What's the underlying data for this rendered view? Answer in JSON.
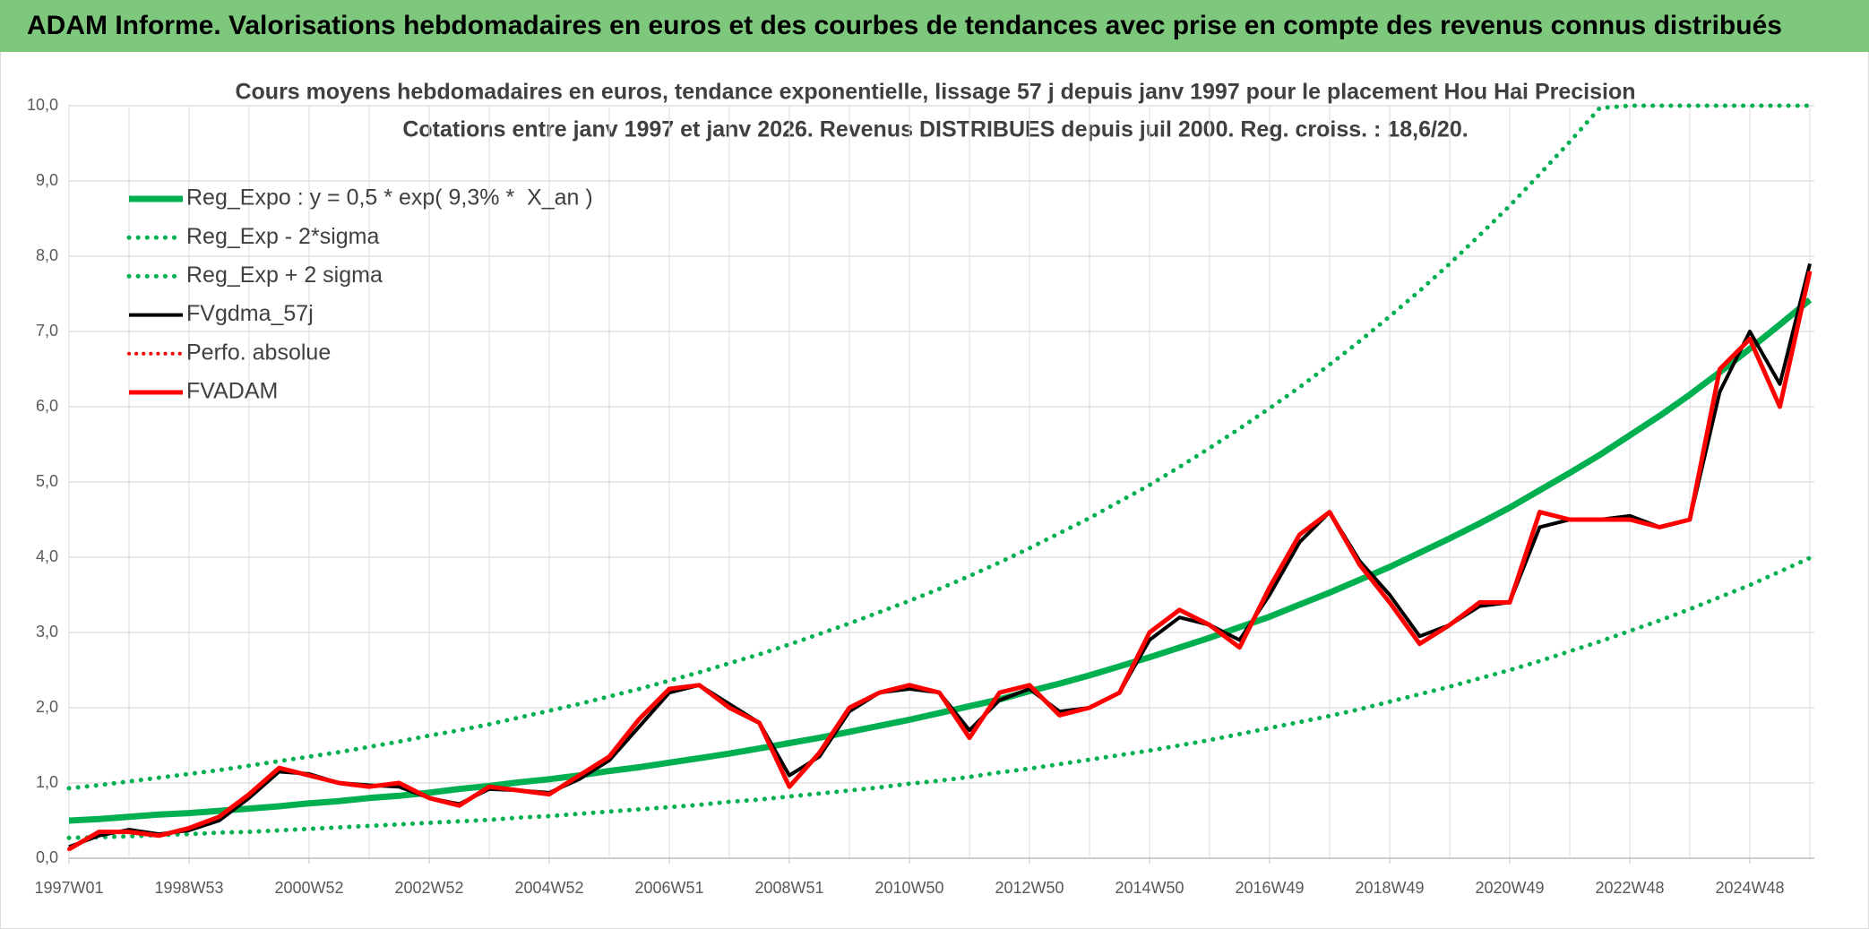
{
  "header": {
    "title": "ADAM Informe. Valorisations hebdomadaires en euros et des courbes de tendances avec prise en compte des revenus connus distribués"
  },
  "chart_data": {
    "type": "line",
    "title": "Cours moyens hebdomadaires en euros, tendance exponentielle, lissage 57 j depuis janv 1997 pour le placement Hou Hai Precision",
    "subtitle": "Cotations entre janv 1997 et janv 2026. Revenus DISTRIBUES depuis juil 2000. Reg. croiss. : 18,6/20.",
    "categories": [
      "1997W01",
      null,
      null,
      null,
      "1998W53",
      null,
      null,
      null,
      "2000W52",
      null,
      null,
      null,
      "2002W52",
      null,
      null,
      null,
      "2004W52",
      null,
      null,
      null,
      "2006W51",
      null,
      null,
      null,
      "2008W51",
      null,
      null,
      null,
      "2010W50",
      null,
      null,
      null,
      "2012W50",
      null,
      null,
      null,
      "2014W50",
      null,
      null,
      null,
      "2016W49",
      null,
      null,
      null,
      "2018W49",
      null,
      null,
      null,
      "2020W49",
      null,
      null,
      null,
      "2022W48",
      null,
      null,
      null,
      "2024W48",
      null,
      null
    ],
    "ylim": [
      0,
      10
    ],
    "yticks": [
      {
        "value": 0,
        "label": "0,0"
      },
      {
        "value": 1,
        "label": "1,0"
      },
      {
        "value": 2,
        "label": "2,0"
      },
      {
        "value": 3,
        "label": "3,0"
      },
      {
        "value": 4,
        "label": "4,0"
      },
      {
        "value": 5,
        "label": "5,0"
      },
      {
        "value": 6,
        "label": "6,0"
      },
      {
        "value": 7,
        "label": "7,0"
      },
      {
        "value": 8,
        "label": "8,0"
      },
      {
        "value": 9,
        "label": "9,0"
      },
      {
        "value": 10,
        "label": "10,0"
      }
    ],
    "grid": true,
    "legend": "top-left",
    "series": [
      {
        "name": "Reg_Expo : y = 0,5 * exp( 9,3% *  X_an )",
        "color": "#00b050",
        "style": "solid",
        "values": [
          0.5,
          0.52,
          0.55,
          0.58,
          0.6,
          0.63,
          0.66,
          0.69,
          0.73,
          0.76,
          0.8,
          0.83,
          0.87,
          0.92,
          0.96,
          1.01,
          1.05,
          1.1,
          1.16,
          1.21,
          1.27,
          1.33,
          1.39,
          1.46,
          1.53,
          1.6,
          1.68,
          1.76,
          1.84,
          1.93,
          2.02,
          2.11,
          2.22,
          2.32,
          2.43,
          2.55,
          2.67,
          2.8,
          2.93,
          3.07,
          3.21,
          3.37,
          3.53,
          3.7,
          3.87,
          4.06,
          4.25,
          4.45,
          4.66,
          4.89,
          5.12,
          5.36,
          5.62,
          5.88,
          6.16,
          6.46,
          6.77,
          7.09,
          7.42
        ]
      },
      {
        "name": "Reg_Exp - 2*sigma",
        "color": "#00b050",
        "style": "dotted",
        "values": [
          0.27,
          0.28,
          0.29,
          0.31,
          0.32,
          0.34,
          0.35,
          0.37,
          0.39,
          0.41,
          0.43,
          0.45,
          0.47,
          0.49,
          0.51,
          0.54,
          0.56,
          0.59,
          0.62,
          0.65,
          0.68,
          0.71,
          0.75,
          0.78,
          0.82,
          0.86,
          0.9,
          0.94,
          0.99,
          1.03,
          1.08,
          1.14,
          1.19,
          1.25,
          1.31,
          1.37,
          1.43,
          1.5,
          1.57,
          1.65,
          1.73,
          1.81,
          1.89,
          1.98,
          2.08,
          2.18,
          2.28,
          2.39,
          2.5,
          2.62,
          2.75,
          2.88,
          3.02,
          3.16,
          3.31,
          3.47,
          3.63,
          3.81,
          3.99
        ]
      },
      {
        "name": "Reg_Exp + 2 sigma",
        "color": "#00b050",
        "style": "dotted",
        "values": [
          0.93,
          0.97,
          1.02,
          1.07,
          1.12,
          1.17,
          1.23,
          1.29,
          1.35,
          1.41,
          1.48,
          1.55,
          1.63,
          1.7,
          1.78,
          1.87,
          1.96,
          2.05,
          2.15,
          2.25,
          2.36,
          2.47,
          2.59,
          2.71,
          2.84,
          2.98,
          3.12,
          3.27,
          3.42,
          3.58,
          3.75,
          3.93,
          4.12,
          4.32,
          4.52,
          4.74,
          4.96,
          5.2,
          5.45,
          5.71,
          5.98,
          6.26,
          6.56,
          6.87,
          7.2,
          7.54,
          7.9,
          8.28,
          8.67,
          9.09,
          9.52,
          9.97,
          10,
          10,
          10,
          10,
          10,
          10,
          10
        ]
      },
      {
        "name": "FVgdma_57j",
        "color": "#000000",
        "style": "solid",
        "values": [
          0.15,
          0.3,
          0.38,
          0.32,
          0.37,
          0.5,
          0.8,
          1.15,
          1.12,
          1.0,
          0.97,
          0.95,
          0.8,
          0.72,
          0.92,
          0.9,
          0.87,
          1.05,
          1.3,
          1.75,
          2.2,
          2.3,
          2.05,
          1.8,
          1.1,
          1.35,
          1.95,
          2.2,
          2.25,
          2.2,
          1.7,
          2.1,
          2.25,
          1.95,
          2.0,
          2.2,
          2.9,
          3.2,
          3.1,
          2.9,
          3.5,
          4.2,
          4.6,
          3.95,
          3.5,
          2.95,
          3.1,
          3.35,
          3.4,
          4.4,
          4.5,
          4.5,
          4.55,
          4.4,
          4.5,
          6.2,
          7.0,
          6.3,
          7.9
        ]
      },
      {
        "name": "Perfo. absolue",
        "color": "#ff0000",
        "style": "dotted",
        "values": [
          0.12,
          0.35,
          0.35,
          0.3,
          0.4,
          0.55,
          0.85,
          1.2,
          1.1,
          1.0,
          0.95,
          1.0,
          0.8,
          0.7,
          0.95,
          0.9,
          0.85,
          1.1,
          1.35,
          1.85,
          2.25,
          2.3,
          2.0,
          1.8,
          0.95,
          1.4,
          2.0,
          2.2,
          2.3,
          2.2,
          1.6,
          2.2,
          2.3,
          1.9,
          2.0,
          2.2,
          3.0,
          3.3,
          3.1,
          2.8,
          3.6,
          4.3,
          4.6,
          3.9,
          3.4,
          2.85,
          3.1,
          3.4,
          3.4,
          4.6,
          4.5,
          4.5,
          4.5,
          4.4,
          4.5,
          6.5,
          6.9,
          6.0,
          7.8
        ]
      },
      {
        "name": "FVADAM",
        "color": "#ff0000",
        "style": "solid",
        "values": [
          0.12,
          0.35,
          0.35,
          0.3,
          0.4,
          0.55,
          0.85,
          1.2,
          1.1,
          1.0,
          0.95,
          1.0,
          0.8,
          0.7,
          0.95,
          0.9,
          0.85,
          1.1,
          1.35,
          1.85,
          2.25,
          2.3,
          2.0,
          1.8,
          0.95,
          1.4,
          2.0,
          2.2,
          2.3,
          2.2,
          1.6,
          2.2,
          2.3,
          1.9,
          2.0,
          2.2,
          3.0,
          3.3,
          3.1,
          2.8,
          3.6,
          4.3,
          4.6,
          3.9,
          3.4,
          2.85,
          3.1,
          3.4,
          3.4,
          4.6,
          4.5,
          4.5,
          4.5,
          4.4,
          4.5,
          6.5,
          6.9,
          6.0,
          7.8
        ]
      }
    ]
  }
}
